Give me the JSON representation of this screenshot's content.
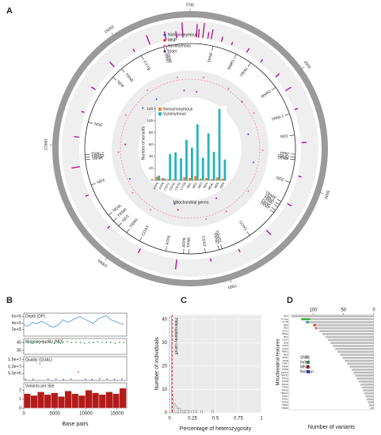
{
  "chart_data": [
    {
      "type": "circos",
      "panel": "A",
      "xlim": [
        0,
        16569
      ],
      "ring_ticks": [
        {
          "value": 0,
          "label": "0 bp"
        },
        2500,
        5000,
        7500,
        10000,
        12500,
        15000
      ],
      "outer_track": {
        "color": "#b0178a",
        "ylim": [
          0,
          10
        ],
        "x": [
          150,
          200,
          300,
          420,
          500,
          750,
          1000,
          1400,
          1800,
          2300,
          2700,
          3200,
          4000,
          4800,
          5500,
          6300,
          7100,
          7800,
          8600,
          9500,
          10400,
          11300,
          12000,
          12700,
          13300,
          13900,
          14600,
          15200,
          15600,
          16000,
          16250,
          16400
        ],
        "values": [
          8,
          5,
          9,
          4,
          6,
          3,
          2,
          3,
          2,
          3,
          4,
          2,
          3,
          2,
          3,
          4,
          2,
          2,
          6,
          3,
          2,
          2,
          5,
          3,
          2,
          3,
          4,
          2,
          6,
          5,
          4,
          9
        ]
      },
      "track_ylim": [
        0,
        1
      ],
      "series": [
        {
          "name": "Nonsynonymous",
          "color": "#2f4fd0",
          "x": [
            3500,
            4700,
            9000,
            11200,
            14300,
            15000
          ],
          "values": [
            0.3,
            0.5,
            0.2,
            0.6,
            0.4,
            0.3
          ]
        },
        {
          "name": "MNP",
          "color": "#d62020",
          "x": [
            2200,
            8800,
            12600
          ],
          "values": [
            0.7,
            0.4,
            0.5
          ]
        },
        {
          "name": "Synonymous",
          "color": "#f06bb0",
          "x": [
            500,
            1500,
            2800,
            4200,
            5800,
            6900,
            7700,
            9800,
            10700,
            12300,
            13700,
            14900,
            16100
          ],
          "values": [
            0.8,
            0.75,
            0.82,
            0.8,
            0.78,
            0.8,
            0.79,
            0.81,
            0.8,
            0.77,
            0.8,
            0.79,
            0.8
          ]
        },
        {
          "name": "Indel",
          "color": "#8a2a9a",
          "x": [
            300,
            7000,
            16300
          ],
          "values": [
            0.2,
            0.15,
            0.25
          ]
        }
      ],
      "genes": {
        "labels": [
          "TRNF",
          "RNR1",
          "TRNV",
          "RNR2",
          "TRNL1",
          "ND1",
          "TRNI",
          "TRNQ",
          "TRNM",
          "ND2",
          "TRNW",
          "TRNA",
          "TRNN",
          "TRNC",
          "TRNY",
          "COX1",
          "TRNS1",
          "TRND",
          "COX2",
          "TRNK",
          "ATP8",
          "ATP6",
          "COX3",
          "TRNG",
          "ND3",
          "TRNR",
          "ND4L",
          "ND4",
          "TRNH",
          "TRNS2",
          "TRNL2",
          "ND5",
          "ND6",
          "TRNE",
          "CYTB",
          "TRNT",
          "TRNP"
        ],
        "positions": [
          577,
          1200,
          1620,
          2500,
          3250,
          3800,
          4280,
          4360,
          4420,
          5000,
          5530,
          5620,
          5690,
          5790,
          5860,
          6700,
          7470,
          7550,
          7900,
          8320,
          8450,
          8900,
          9600,
          9990,
          10250,
          10430,
          10620,
          11500,
          12150,
          12210,
          12280,
          13100,
          14400,
          14700,
          15300,
          15900,
          15970
        ]
      }
    },
    {
      "type": "bar",
      "ylabel": "Number of variants",
      "xlabel": "Mitochondrial genes",
      "categories": [
        "ATP6",
        "ATP8",
        "COX1",
        "COX2",
        "COX3",
        "CYTB",
        "ND1",
        "ND2",
        "ND3",
        "ND4",
        "ND4L",
        "ND5",
        "ND6"
      ],
      "series": [
        {
          "name": "Nonsynonymous",
          "color": "#f07c2f",
          "values": [
            6,
            4,
            2,
            2,
            1,
            5,
            4,
            7,
            3,
            4,
            2,
            5,
            3
          ]
        },
        {
          "name": "Synonymous",
          "color": "#1fb5c0",
          "values": [
            8,
            3,
            44,
            47,
            37,
            68,
            55,
            94,
            38,
            79,
            48,
            120,
            35
          ]
        }
      ],
      "ylim": [
        0,
        125
      ],
      "yticks": [
        0,
        20,
        40,
        60,
        80,
        100,
        120
      ]
    },
    {
      "type": "line",
      "panel": "B",
      "title": "Depth (DP)",
      "color": "#4a90d9",
      "xlim": [
        0,
        16569
      ],
      "x": [
        0,
        700,
        1400,
        2100,
        2800,
        3500,
        4200,
        4900,
        5600,
        6300,
        7000,
        7700,
        8400,
        9100,
        9800,
        10500,
        11200,
        11900,
        12600,
        13300,
        14000,
        14700,
        15400,
        16100
      ],
      "values": [
        350000,
        300000,
        420000,
        380000,
        450000,
        400000,
        300000,
        280000,
        350000,
        500000,
        420000,
        480000,
        550000,
        600000,
        520000,
        450000,
        380000,
        520000,
        580000,
        620000,
        500000,
        450000,
        400000,
        350000
      ],
      "ylim": [
        0,
        700000
      ],
      "yticks": [
        {
          "value": 200000,
          "label": "2e+5"
        },
        {
          "value": 400000,
          "label": "4e+5"
        },
        {
          "value": 600000,
          "label": "6e+5"
        }
      ]
    },
    {
      "type": "scatter",
      "title": "Mapping quality (MQ)",
      "color": "#2e9e4f",
      "xlim": [
        0,
        16569
      ],
      "x": [
        0,
        700,
        1400,
        2100,
        2800,
        3500,
        4200,
        4900,
        5600,
        6300,
        7000,
        7700,
        8400,
        9100,
        9800,
        10500,
        11200,
        11900,
        12600,
        13300,
        14000,
        14700,
        15400,
        16100
      ],
      "values": [
        40,
        40,
        39,
        40,
        41,
        40,
        40,
        39,
        40,
        40,
        41,
        40,
        40,
        40,
        39,
        40,
        40,
        41,
        40,
        40,
        40,
        39,
        40,
        40
      ],
      "ylim": [
        25,
        45
      ],
      "yticks": [
        30,
        40
      ]
    },
    {
      "type": "scatter",
      "title": "Quality (QUAL)",
      "color": "#9b59b6",
      "xlim": [
        0,
        16569
      ],
      "x": [
        300,
        1500,
        2600,
        3900,
        5200,
        6400,
        7600,
        8800,
        9900,
        11000,
        12200,
        13400,
        14600,
        15800
      ],
      "values": [
        1000000,
        800000,
        12000000,
        900000,
        1100000,
        700000,
        1000000,
        6000000,
        900000,
        800000,
        1200000,
        1000000,
        900000,
        1100000
      ],
      "ylim": [
        0,
        17000000
      ],
      "yticks": [
        {
          "value": 5000000,
          "label": "5.0e+6"
        },
        {
          "value": 10000000,
          "label": "1.0e+7"
        },
        {
          "value": 15000000,
          "label": "1.5e+7"
        }
      ]
    },
    {
      "type": "histogram",
      "title": "Variants per Site",
      "color": "#b31b1b",
      "xlim": [
        0,
        16569
      ],
      "bins": [
        0,
        1100,
        2200,
        3300,
        4400,
        5500,
        6600,
        7700,
        8800,
        9900,
        11000,
        12100,
        13200,
        14300,
        15400,
        16500
      ],
      "values": [
        1.6,
        1.4,
        1.8,
        1.5,
        1.7,
        1.3,
        1.9,
        1.6,
        1.4,
        2.0,
        1.7,
        1.5,
        1.8,
        1.6,
        2.2
      ],
      "ylim": [
        0,
        2.8
      ],
      "yticks": [
        0,
        1,
        2
      ],
      "xticks": [
        0,
        5000,
        10000,
        15000
      ],
      "xlabel": "Base pairs"
    },
    {
      "type": "histogram",
      "panel": "C",
      "color": "#555555",
      "xlabel": "Percentage of heterozygosity",
      "ylabel": "Number of individuals",
      "bins": [
        0,
        0.02,
        0.04,
        0.06,
        0.08,
        0.1,
        0.12,
        0.14,
        0.16,
        0.18,
        0.2,
        0.22,
        0.24,
        0.26,
        0.28,
        0.3,
        0.32,
        0.34,
        0.36,
        0.38,
        0.4,
        0.42,
        0.44,
        0.46,
        0.48,
        0.5
      ],
      "values": [
        41,
        8,
        4,
        3,
        2,
        2,
        1,
        1,
        1,
        1,
        1,
        0,
        1,
        0,
        1,
        0,
        0,
        1,
        0,
        0,
        0,
        0,
        0,
        1,
        0
      ],
      "xlim": [
        0,
        1
      ],
      "xticks": [
        0,
        0.25,
        0.5,
        0.75,
        1
      ],
      "ylim": [
        0,
        42
      ],
      "yticks": [
        0,
        10,
        20,
        30,
        40
      ],
      "grid": true,
      "cutoff": 0.03,
      "annotation": "Heteroplasmy cut-off"
    },
    {
      "type": "hstack",
      "panel": "D",
      "xlabel": "Number of variants",
      "ylabel": "Mitochondrial features",
      "categories": [
        "ND5",
        "D-loop",
        "CYTB",
        "ND4",
        "ND2",
        "COX1",
        "RNR2",
        "ND1",
        "COX3",
        "ND6",
        "ATP6",
        "COX2",
        "RNR1",
        "ND3",
        "ND4L",
        "ATP8",
        "TRNT",
        "TRNP",
        "TRNE",
        "TRNL2",
        "TRNS2",
        "TRNH",
        "TRNR",
        "TRNG",
        "TRNK",
        "TRND",
        "TRNS1",
        "TRNY",
        "TRNC",
        "TRNN",
        "TRNA",
        "TRNW"
      ],
      "series": [
        {
          "name": "SNP",
          "color": "#bdbdbd",
          "values": [
            136,
            105,
            107,
            96,
            95,
            90,
            85,
            80,
            76,
            72,
            68,
            64,
            60,
            56,
            52,
            48,
            44,
            40,
            37,
            34,
            31,
            28,
            25,
            22,
            20,
            18,
            16,
            14,
            12,
            10,
            8,
            6
          ]
        },
        {
          "name": "Indel",
          "color": "#3cb043",
          "values": [
            0,
            15,
            3,
            0,
            0,
            0,
            0,
            0,
            0,
            0,
            0,
            0,
            0,
            0,
            0,
            0,
            0,
            0,
            0,
            0,
            0,
            0,
            0,
            0,
            0,
            0,
            0,
            0,
            0,
            0,
            0,
            0
          ]
        },
        {
          "name": "MNP",
          "color": "#d62020",
          "values": [
            0,
            0,
            0,
            4,
            2,
            0,
            0,
            0,
            0,
            0,
            0,
            0,
            0,
            0,
            0,
            0,
            0,
            0,
            0,
            0,
            0,
            0,
            0,
            0,
            0,
            0,
            0,
            0,
            0,
            0,
            0,
            0
          ]
        },
        {
          "name": "Nonsyn",
          "color": "#2f4fd0",
          "values": [
            0,
            0,
            2,
            0,
            0,
            0,
            0,
            0,
            0,
            0,
            0,
            0,
            0,
            0,
            0,
            0,
            0,
            0,
            0,
            0,
            0,
            0,
            0,
            0,
            0,
            0,
            0,
            0,
            0,
            0,
            0,
            0
          ]
        }
      ],
      "xlim": [
        0,
        140
      ],
      "xticks": [
        100,
        50,
        0
      ]
    }
  ]
}
